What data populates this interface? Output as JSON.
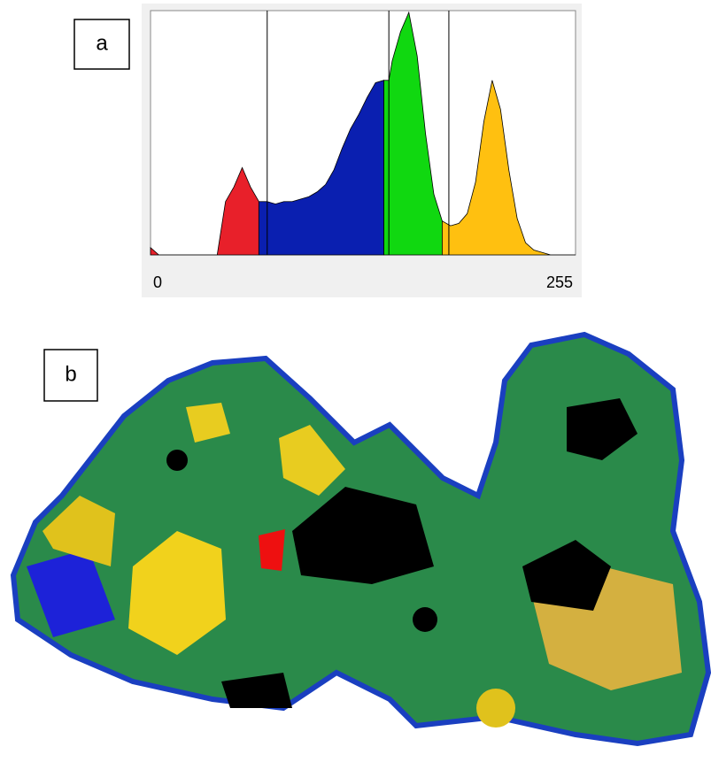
{
  "panels": {
    "a": "a",
    "b": "b"
  },
  "chart_data": {
    "type": "area",
    "x": [
      0,
      5,
      10,
      15,
      20,
      25,
      30,
      35,
      40,
      45,
      50,
      55,
      60,
      65,
      70,
      75,
      80,
      85,
      90,
      95,
      100,
      105,
      110,
      115,
      120,
      125,
      130,
      135,
      140,
      143,
      145,
      150,
      155,
      160,
      165,
      170,
      175,
      180,
      185,
      190,
      195,
      200,
      205,
      210,
      215,
      220,
      225,
      230,
      235,
      240,
      245,
      250,
      255
    ],
    "values": [
      3,
      0,
      0,
      0,
      0,
      0,
      0,
      0,
      0,
      22,
      28,
      36,
      28,
      22,
      22,
      21,
      22,
      22,
      23,
      24,
      26,
      29,
      35,
      44,
      52,
      58,
      65,
      71,
      72,
      72,
      80,
      92,
      100,
      82,
      50,
      25,
      14,
      12,
      13,
      17,
      30,
      55,
      72,
      60,
      35,
      15,
      5,
      2,
      1,
      0,
      0,
      0,
      0
    ],
    "xlim": [
      0,
      255
    ],
    "ylim": [
      0,
      100
    ],
    "xticks": [
      0,
      255
    ],
    "thresholds": [
      70,
      143,
      179
    ],
    "segment_colors": [
      "#e8202a",
      "#0a1fb0",
      "#10d810",
      "#ffc010"
    ]
  }
}
